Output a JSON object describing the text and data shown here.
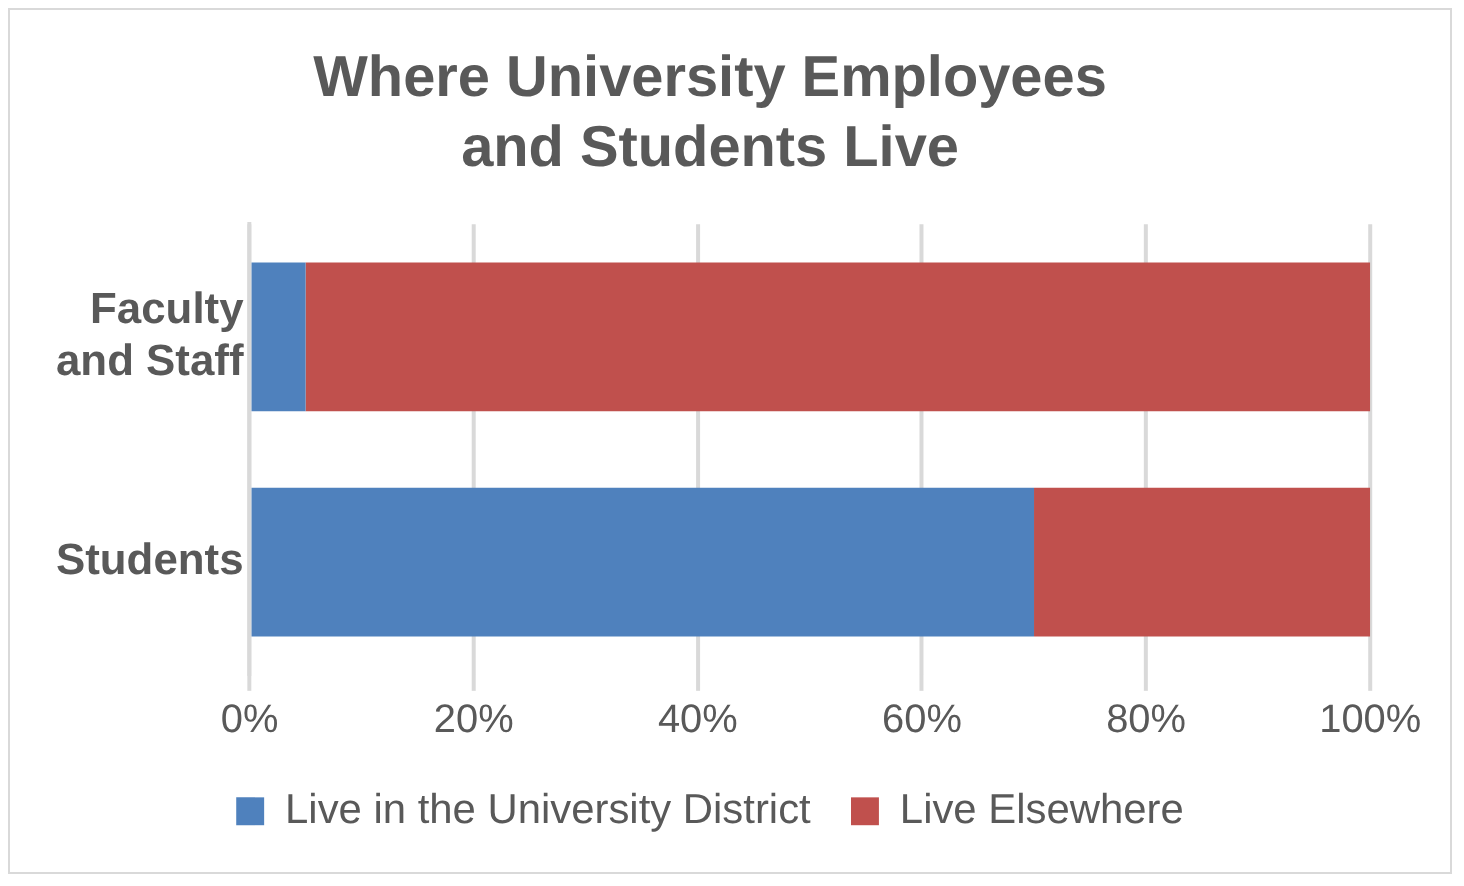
{
  "chart_data": {
    "type": "bar",
    "orientation": "horizontal",
    "stacked": true,
    "title": "Where University Employees and Students Live",
    "categories": [
      "Faculty and Staff",
      "Students"
    ],
    "series": [
      {
        "name": "Live in the University District",
        "color": "#4f81bd",
        "values": [
          5,
          70
        ]
      },
      {
        "name": "Live Elsewhere",
        "color": "#c0504d",
        "values": [
          95,
          30
        ]
      }
    ],
    "xlim": [
      0,
      100
    ],
    "xticks": [
      {
        "value": 0,
        "label": "0%"
      },
      {
        "value": 20,
        "label": "20%"
      },
      {
        "value": 40,
        "label": "40%"
      },
      {
        "value": 60,
        "label": "60%"
      },
      {
        "value": 80,
        "label": "80%"
      },
      {
        "value": 100,
        "label": "100%"
      }
    ],
    "grid": "x",
    "legend": "bottom"
  }
}
